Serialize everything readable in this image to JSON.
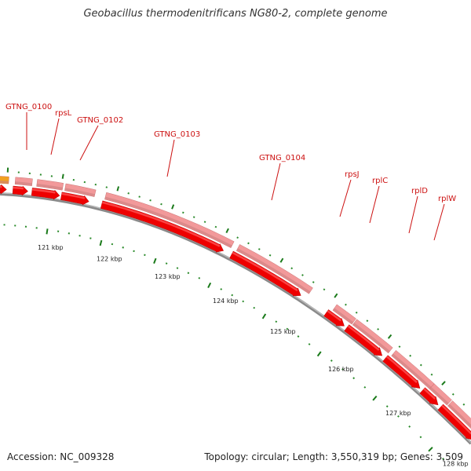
{
  "title": "Geobacillus thermodenitrificans NG80-2, complete genome",
  "footer": {
    "accession": "Accession: NC_009328",
    "summary": "Topology: circular; Length: 3,550,319 bp; Genes: 3,509"
  },
  "colors": {
    "gene_label": "#cc1111",
    "cds_fill": "#ee0000",
    "gene_fill": "#f2999a",
    "orange_gene": "#f0a020",
    "backbone": "#8a8a8a",
    "major_tick": "#1a7a1a",
    "minor_tick": "#2a8a2a"
  },
  "gene_labels": [
    "GTNG_0100",
    "rpsL",
    "GTNG_0102",
    "GTNG_0103",
    "GTNG_0104",
    "rpsJ",
    "rplC",
    "rplD",
    "rplW"
  ],
  "kbp_labels": [
    "121 kbp",
    "122 kbp",
    "123 kbp",
    "124 kbp",
    "125 kbp",
    "126 kbp",
    "127 kbp",
    "128 kbp"
  ]
}
